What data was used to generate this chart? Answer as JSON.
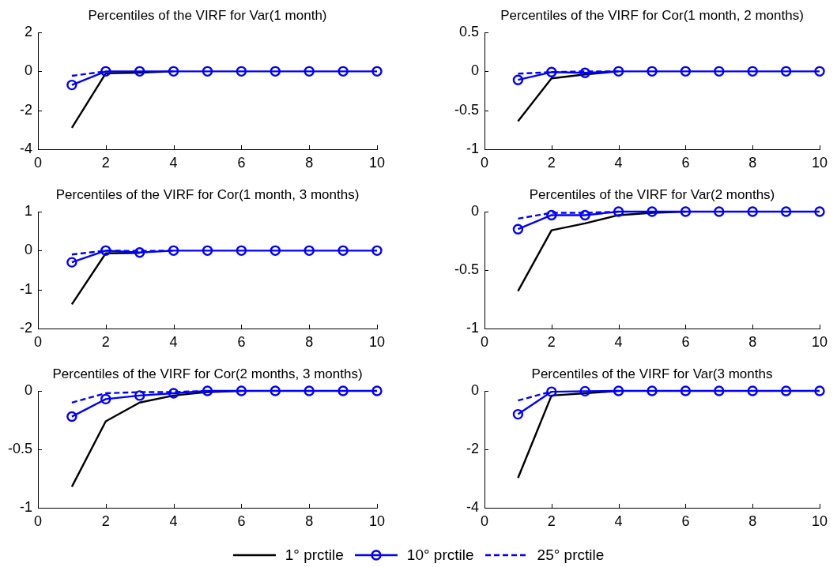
{
  "chart_data": [
    {
      "type": "line",
      "title": "Percentiles of the VIRF for Var(1 month)",
      "x": [
        1,
        2,
        3,
        4,
        5,
        6,
        7,
        8,
        9,
        10
      ],
      "xlim": [
        0,
        10
      ],
      "xticks": [
        0,
        2,
        4,
        6,
        8,
        10
      ],
      "ylim": [
        -4,
        2
      ],
      "yticks": [
        -4,
        -2,
        0,
        2
      ],
      "legend": "bottom",
      "series": [
        {
          "name": "1° prctile",
          "color": "#000000",
          "values": [
            -2.9,
            -0.1,
            -0.07,
            0,
            null,
            null,
            null,
            null,
            null,
            null
          ]
        },
        {
          "name": "10° prctile",
          "color": "#0000ff",
          "marker": "circle",
          "values": [
            -0.7,
            0,
            0,
            0,
            0,
            0,
            0,
            0,
            0,
            0
          ]
        },
        {
          "name": "25° prctile",
          "color": "#0000ff",
          "line_style": "dashed",
          "values": [
            -0.23,
            0,
            null,
            null,
            null,
            null,
            null,
            null,
            null,
            null
          ]
        }
      ]
    },
    {
      "type": "line",
      "title": "Percentiles of the VIRF for Cor(1 month, 2 months)",
      "x": [
        1,
        2,
        3,
        4,
        5,
        6,
        7,
        8,
        9,
        10
      ],
      "xlim": [
        0,
        10
      ],
      "xticks": [
        0,
        2,
        4,
        6,
        8,
        10
      ],
      "ylim": [
        -1,
        0.5
      ],
      "yticks": [
        -1,
        -0.5,
        0,
        0.5
      ],
      "series": [
        {
          "color": "#000000",
          "values": [
            -0.64,
            -0.09,
            -0.04,
            0,
            null,
            null,
            null,
            null,
            null,
            null
          ]
        },
        {
          "color": "#0000ff",
          "marker": "circle",
          "values": [
            -0.11,
            -0.01,
            -0.02,
            0,
            0,
            0,
            0,
            0,
            0,
            0
          ]
        },
        {
          "color": "#0000ff",
          "line_style": "dashed",
          "values": [
            -0.03,
            -0.01,
            0,
            0,
            null,
            null,
            null,
            null,
            null,
            null
          ]
        }
      ]
    },
    {
      "type": "line",
      "title": "Percentiles of the VIRF for Cor(1 month, 3 months)",
      "x": [
        1,
        2,
        3,
        4,
        5,
        6,
        7,
        8,
        9,
        10
      ],
      "xlim": [
        0,
        10
      ],
      "xticks": [
        0,
        2,
        4,
        6,
        8,
        10
      ],
      "ylim": [
        -2,
        1
      ],
      "yticks": [
        -2,
        -1,
        0,
        1
      ],
      "series": [
        {
          "color": "#000000",
          "values": [
            -1.38,
            -0.07,
            -0.06,
            null,
            null,
            null,
            null,
            null,
            null,
            null
          ]
        },
        {
          "color": "#0000ff",
          "marker": "circle",
          "values": [
            -0.3,
            0,
            -0.05,
            0,
            0,
            0,
            0,
            0,
            0,
            0
          ]
        },
        {
          "color": "#0000ff",
          "line_style": "dashed",
          "values": [
            -0.1,
            0,
            -0.01,
            0,
            null,
            null,
            null,
            null,
            null,
            null
          ]
        }
      ]
    },
    {
      "type": "line",
      "title": "Percentiles of the VIRF for Var(2 months)",
      "x": [
        1,
        2,
        3,
        4,
        5,
        6,
        7,
        8,
        9,
        10
      ],
      "xlim": [
        0,
        10
      ],
      "xticks": [
        0,
        2,
        4,
        6,
        8,
        10
      ],
      "ylim": [
        -1,
        0
      ],
      "yticks": [
        -1,
        -0.5,
        0
      ],
      "series": [
        {
          "color": "#000000",
          "values": [
            -0.68,
            -0.16,
            -0.1,
            -0.03,
            -0.01,
            0,
            null,
            null,
            null,
            null
          ]
        },
        {
          "color": "#0000ff",
          "marker": "circle",
          "values": [
            -0.15,
            -0.03,
            -0.03,
            0,
            0,
            0,
            0,
            0,
            0,
            0
          ]
        },
        {
          "color": "#0000ff",
          "line_style": "dashed",
          "values": [
            -0.06,
            -0.01,
            -0.01,
            0,
            null,
            null,
            null,
            null,
            null,
            null
          ]
        }
      ]
    },
    {
      "type": "line",
      "title": "Percentiles of the VIRF for Cor(2 months, 3 months)",
      "x": [
        1,
        2,
        3,
        4,
        5,
        6,
        7,
        8,
        9,
        10
      ],
      "xlim": [
        0,
        10
      ],
      "xticks": [
        0,
        2,
        4,
        6,
        8,
        10
      ],
      "ylim": [
        -1,
        0
      ],
      "yticks": [
        -1,
        -0.5,
        0
      ],
      "series": [
        {
          "color": "#000000",
          "values": [
            -0.82,
            -0.26,
            -0.1,
            -0.04,
            -0.01,
            0,
            null,
            null,
            null,
            null
          ]
        },
        {
          "color": "#0000ff",
          "marker": "circle",
          "values": [
            -0.22,
            -0.07,
            -0.04,
            -0.02,
            0,
            0,
            0,
            0,
            0,
            0
          ]
        },
        {
          "color": "#0000ff",
          "line_style": "dashed",
          "values": [
            -0.1,
            -0.02,
            -0.01,
            -0.01,
            0,
            null,
            null,
            null,
            null,
            null
          ]
        }
      ]
    },
    {
      "type": "line",
      "title": "Percentiles of the VIRF for Var(3 months",
      "x": [
        1,
        2,
        3,
        4,
        5,
        6,
        7,
        8,
        9,
        10
      ],
      "xlim": [
        0,
        10
      ],
      "xticks": [
        0,
        2,
        4,
        6,
        8,
        10
      ],
      "ylim": [
        -4,
        0
      ],
      "yticks": [
        -4,
        -2,
        0
      ],
      "series": [
        {
          "color": "#000000",
          "values": [
            -2.98,
            -0.16,
            -0.08,
            0,
            null,
            null,
            null,
            null,
            null,
            null
          ]
        },
        {
          "color": "#0000ff",
          "marker": "circle",
          "values": [
            -0.8,
            -0.03,
            -0.01,
            0,
            0,
            0,
            0,
            0,
            0,
            0
          ]
        },
        {
          "color": "#0000ff",
          "line_style": "dashed",
          "values": [
            -0.33,
            -0.02,
            null,
            null,
            null,
            null,
            null,
            null,
            null,
            null
          ]
        }
      ]
    }
  ]
}
